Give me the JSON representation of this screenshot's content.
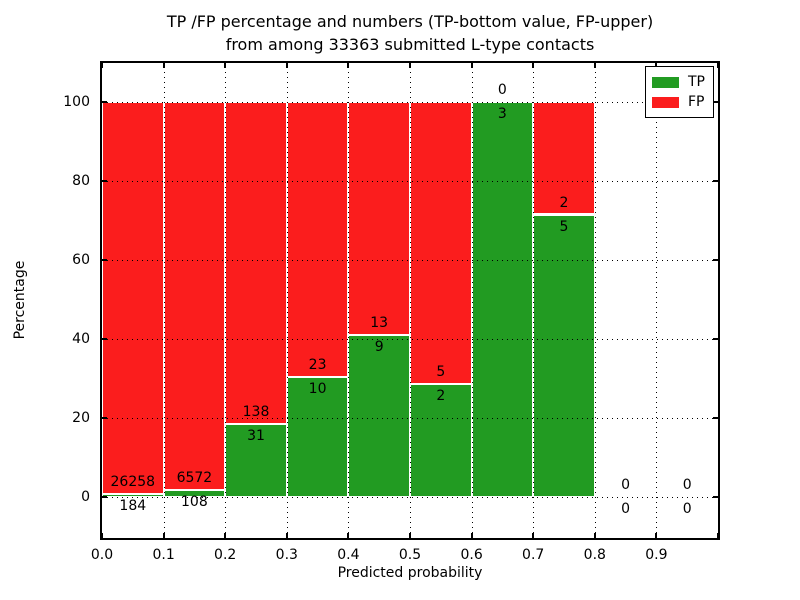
{
  "chart_data": {
    "type": "bar",
    "stacked": true,
    "title_line1": "TP /FP percentage and numbers (TP-bottom value, FP-upper)",
    "title_line2": "from among 33363 submitted L-type contacts",
    "xlabel": "Predicted probability",
    "ylabel": "Percentage",
    "xlim": [
      0.0,
      1.0
    ],
    "ylim": [
      -10.5,
      109.8
    ],
    "grid": true,
    "annotation_rule": "FP count above TP/FP boundary, TP count below boundary",
    "x_ticks": [
      {
        "v": 0.0,
        "label": "0.0"
      },
      {
        "v": 0.1,
        "label": "0.1"
      },
      {
        "v": 0.2,
        "label": "0.2"
      },
      {
        "v": 0.3,
        "label": "0.3"
      },
      {
        "v": 0.4,
        "label": "0.4"
      },
      {
        "v": 0.5,
        "label": "0.5"
      },
      {
        "v": 0.6,
        "label": "0.6"
      },
      {
        "v": 0.7,
        "label": "0.7"
      },
      {
        "v": 0.8,
        "label": "0.8"
      },
      {
        "v": 0.9,
        "label": "0.9"
      },
      {
        "v": 1.0,
        "label": ""
      }
    ],
    "y_ticks": [
      {
        "v": 0,
        "label": "0"
      },
      {
        "v": 20,
        "label": "20"
      },
      {
        "v": 40,
        "label": "40"
      },
      {
        "v": 60,
        "label": "60"
      },
      {
        "v": 80,
        "label": "80"
      },
      {
        "v": 100,
        "label": "100"
      }
    ],
    "bins": [
      {
        "x0": 0.0,
        "x1": 0.1,
        "tp": 184,
        "fp": 26258,
        "tp_pct": 0.7
      },
      {
        "x0": 0.1,
        "x1": 0.2,
        "tp": 108,
        "fp": 6572,
        "tp_pct": 1.62
      },
      {
        "x0": 0.2,
        "x1": 0.3,
        "tp": 31,
        "fp": 138,
        "tp_pct": 18.34
      },
      {
        "x0": 0.3,
        "x1": 0.4,
        "tp": 10,
        "fp": 23,
        "tp_pct": 30.3
      },
      {
        "x0": 0.4,
        "x1": 0.5,
        "tp": 9,
        "fp": 13,
        "tp_pct": 40.91
      },
      {
        "x0": 0.5,
        "x1": 0.6,
        "tp": 2,
        "fp": 5,
        "tp_pct": 28.57
      },
      {
        "x0": 0.6,
        "x1": 0.7,
        "tp": 3,
        "fp": 0,
        "tp_pct": 100.0
      },
      {
        "x0": 0.7,
        "x1": 0.8,
        "tp": 5,
        "fp": 2,
        "tp_pct": 71.43
      },
      {
        "x0": 0.8,
        "x1": 0.9,
        "tp": 0,
        "fp": 0,
        "tp_pct": null
      },
      {
        "x0": 0.9,
        "x1": 1.0,
        "tp": 0,
        "fp": 0,
        "tp_pct": null
      }
    ],
    "legend": {
      "position": "upper right",
      "entries": [
        {
          "label": "TP",
          "color": "#229b22"
        },
        {
          "label": "FP",
          "color": "#fb1d1d"
        }
      ]
    }
  }
}
